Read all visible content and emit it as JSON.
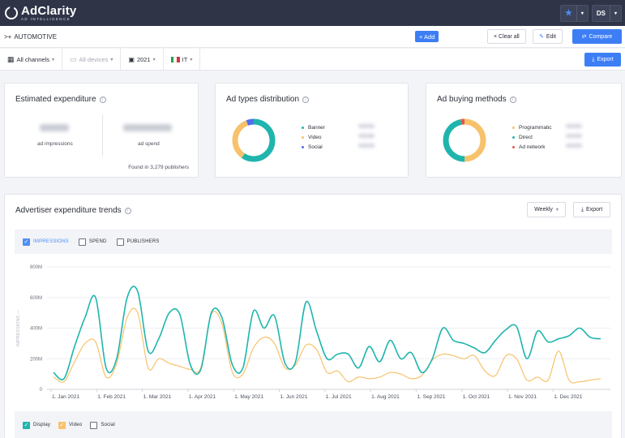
{
  "app": {
    "name": "AdClarity",
    "subtitle": "AD INTELLIGENCE"
  },
  "header": {
    "star_icon": "star-icon",
    "user_initials": "DS"
  },
  "breadcrumb": {
    "arrow": ">+",
    "label": "AUTOMOTIVE"
  },
  "actions": {
    "add_label": "+ Add",
    "clear_label": "× Clear all",
    "edit_label": "Edit",
    "compare_label": "Compare"
  },
  "filters": {
    "channels": "All channels",
    "devices": "All devices",
    "year": "2021",
    "country": "IT",
    "export_label": "Export"
  },
  "estimated": {
    "title": "Estimated expenditure",
    "impressions_label": "ad impressions",
    "spend_label": "ad spend",
    "found_text": "Found in 3,279 publishers"
  },
  "ad_types": {
    "title": "Ad types distribution",
    "items": [
      {
        "label": "Banner",
        "color": "#1fb5ad"
      },
      {
        "label": "Video",
        "color": "#f7c26b"
      },
      {
        "label": "Social",
        "color": "#4e6ef2"
      }
    ]
  },
  "buying": {
    "title": "Ad buying methods",
    "items": [
      {
        "label": "Programmatic",
        "color": "#f7c26b"
      },
      {
        "label": "Direct",
        "color": "#1fb5ad"
      },
      {
        "label": "Ad network",
        "color": "#e9574b"
      }
    ]
  },
  "trends": {
    "title": "Advertiser expenditure trends",
    "period": "Weekly",
    "export_label": "Export",
    "metrics": [
      "IMPRESSIONS",
      "SPEND",
      "PUBLISHERS"
    ],
    "series_toggles": [
      "Display",
      "Video",
      "Social"
    ]
  },
  "chart_data": {
    "type": "line",
    "ylabel": "IMPRESSIONS",
    "ylim": [
      0,
      800
    ],
    "yticks": [
      "0",
      "200M",
      "400M",
      "600M",
      "800M"
    ],
    "xticks": [
      "1. Jan 2021",
      "1. Feb 2021",
      "1. Mar 2021",
      "1. Apr 2021",
      "1. May 2021",
      "1. Jun 2021",
      "1. Jul 2021",
      "1. Aug 2021",
      "1. Sep 2021",
      "1. Oct 2021",
      "1. Nov 2021",
      "1. Dec 2021"
    ],
    "series": [
      {
        "name": "Display",
        "color": "#1fb5ad",
        "values": [
          110,
          70,
          280,
          470,
          600,
          140,
          200,
          600,
          640,
          250,
          330,
          500,
          490,
          160,
          130,
          500,
          470,
          160,
          140,
          510,
          400,
          480,
          170,
          180,
          570,
          380,
          200,
          230,
          230,
          140,
          280,
          180,
          320,
          200,
          240,
          110,
          200,
          400,
          320,
          300,
          270,
          240,
          320,
          390,
          410,
          200,
          380,
          310,
          330,
          350,
          400,
          340,
          330
        ]
      },
      {
        "name": "Video",
        "color": "#f7c26b",
        "values": [
          80,
          50,
          180,
          300,
          310,
          80,
          170,
          470,
          500,
          140,
          200,
          170,
          150,
          130,
          140,
          490,
          430,
          110,
          100,
          270,
          340,
          300,
          140,
          160,
          290,
          260,
          110,
          120,
          50,
          80,
          70,
          80,
          110,
          100,
          70,
          90,
          190,
          230,
          220,
          200,
          220,
          120,
          90,
          220,
          200,
          60,
          80,
          60,
          250,
          60,
          50,
          60,
          70
        ]
      }
    ]
  }
}
